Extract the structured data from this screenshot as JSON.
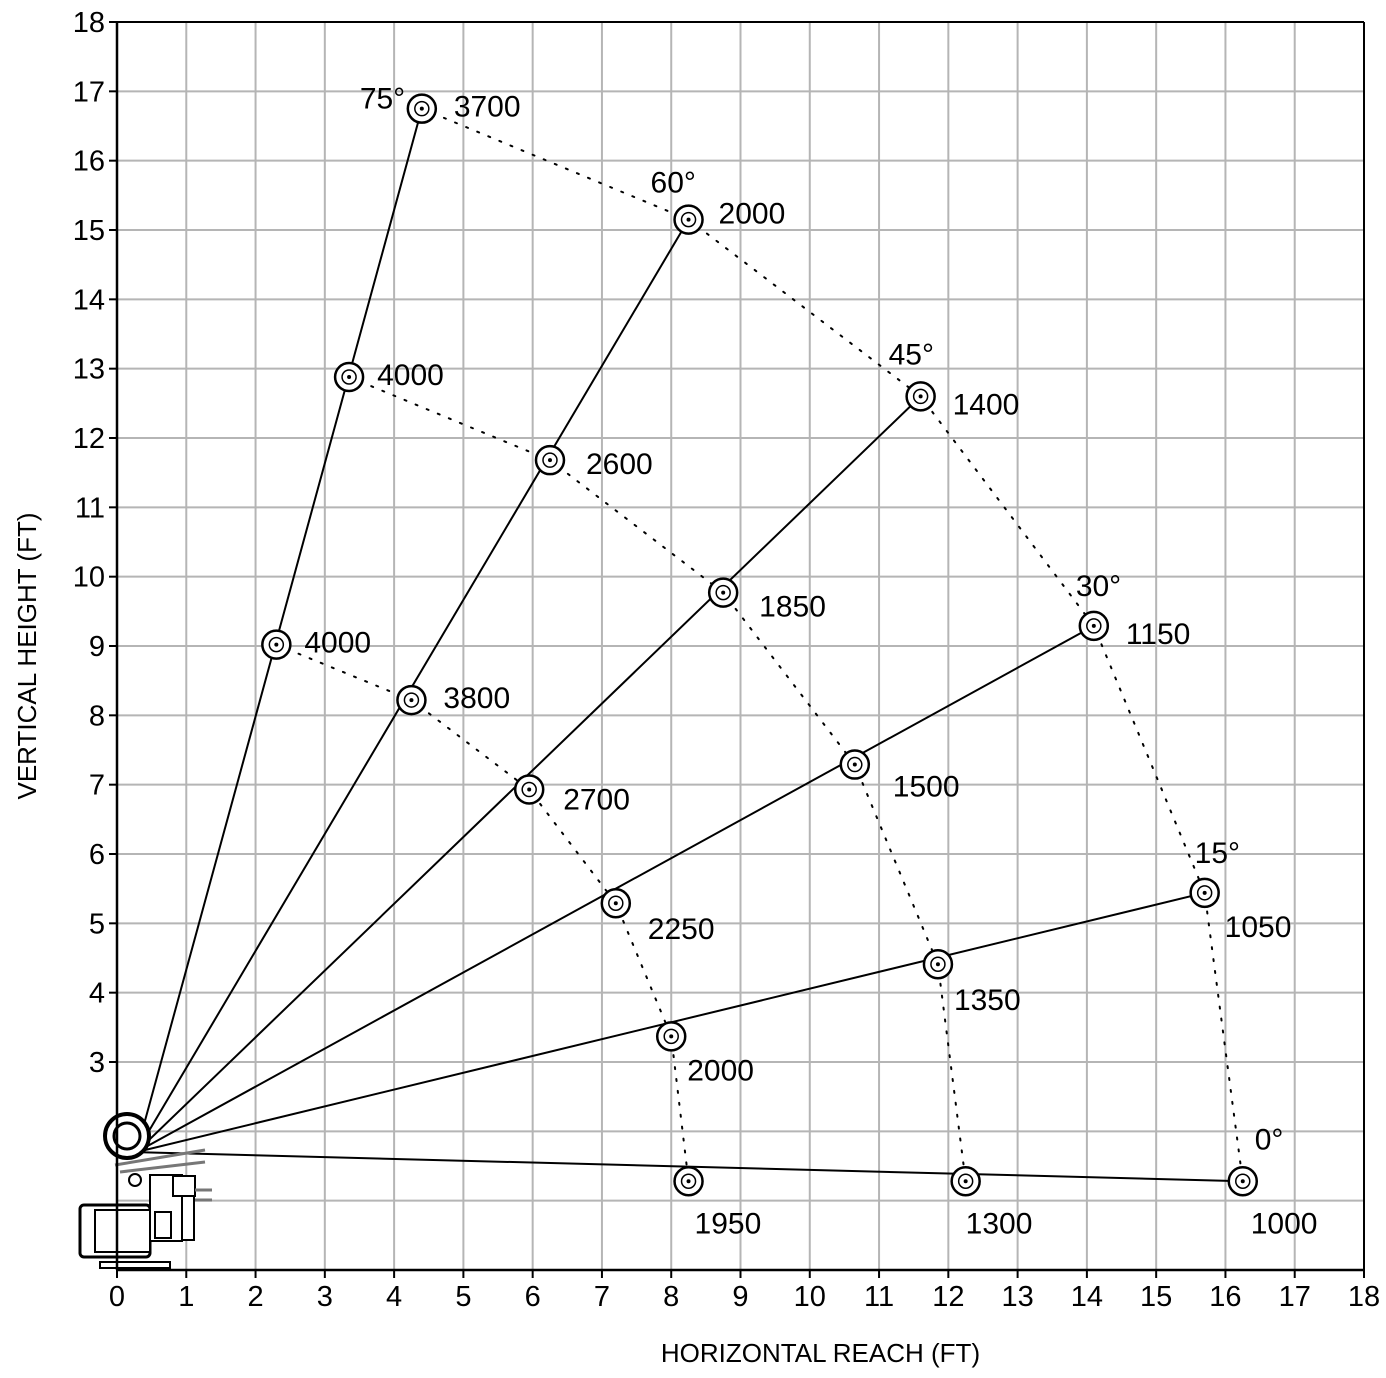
{
  "chart_data": {
    "type": "scatter",
    "title": "",
    "xlabel": "HORIZONTAL REACH (FT)",
    "ylabel": "VERTICAL HEIGHT (FT)",
    "xlim": [
      0,
      18
    ],
    "ylim": [
      0,
      18
    ],
    "x_ticks": [
      "0",
      "1",
      "2",
      "3",
      "4",
      "5",
      "6",
      "7",
      "8",
      "9",
      "10",
      "11",
      "12",
      "13",
      "14",
      "15",
      "16",
      "17",
      "18"
    ],
    "y_ticks": [
      "3",
      "4",
      "5",
      "6",
      "7",
      "8",
      "9",
      "10",
      "11",
      "12",
      "13",
      "14",
      "15",
      "16",
      "17",
      "18"
    ],
    "grid": true,
    "boom_origin": {
      "x": 0.28,
      "y": 1.7
    },
    "series": [
      {
        "angle": "75°",
        "points": [
          {
            "x": 2.3,
            "y": 9.02,
            "load": "4000"
          },
          {
            "x": 3.35,
            "y": 12.88,
            "load": "4000"
          },
          {
            "x": 4.4,
            "y": 16.75,
            "load": "3700"
          }
        ]
      },
      {
        "angle": "60°",
        "points": [
          {
            "x": 4.25,
            "y": 8.22,
            "load": "3800"
          },
          {
            "x": 6.25,
            "y": 11.68,
            "load": "2600"
          },
          {
            "x": 8.25,
            "y": 15.15,
            "load": "2000"
          }
        ]
      },
      {
        "angle": "45°",
        "points": [
          {
            "x": 5.95,
            "y": 6.93,
            "load": "2700"
          },
          {
            "x": 8.75,
            "y": 9.77,
            "load": "1850"
          },
          {
            "x": 11.6,
            "y": 12.6,
            "load": "1400"
          }
        ]
      },
      {
        "angle": "30°",
        "points": [
          {
            "x": 7.2,
            "y": 5.29,
            "load": "2250"
          },
          {
            "x": 10.65,
            "y": 7.29,
            "load": "1500"
          },
          {
            "x": 14.1,
            "y": 9.29,
            "load": "1150"
          }
        ]
      },
      {
        "angle": "15°",
        "points": [
          {
            "x": 8.0,
            "y": 3.37,
            "load": "2000"
          },
          {
            "x": 11.85,
            "y": 4.41,
            "load": "1350"
          },
          {
            "x": 15.7,
            "y": 5.44,
            "load": "1050"
          }
        ]
      },
      {
        "angle": "0°",
        "points": [
          {
            "x": 8.25,
            "y": 1.28,
            "load": "1950"
          },
          {
            "x": 12.25,
            "y": 1.28,
            "load": "1300"
          },
          {
            "x": 16.25,
            "y": 1.28,
            "load": "1000"
          }
        ]
      }
    ]
  }
}
